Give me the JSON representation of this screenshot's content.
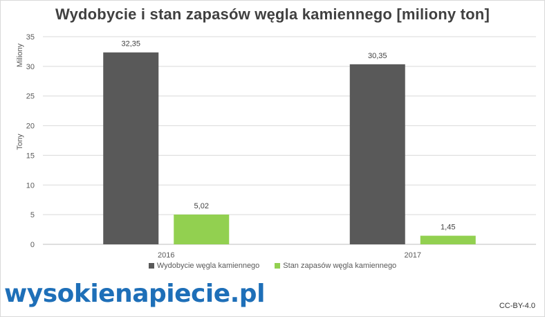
{
  "title": "Wydobycie i stan zapasów węgla kamiennego [miliony ton]",
  "colors": {
    "series1": "#595959",
    "series2": "#92d050",
    "logo": "#1e6fb8"
  },
  "chart_data": {
    "type": "bar",
    "categories": [
      "2016",
      "2017"
    ],
    "series": [
      {
        "name": "Wydobycie węgla kamiennego",
        "values": [
          32.35,
          30.35
        ],
        "labels": [
          "32,35",
          "30,35"
        ]
      },
      {
        "name": "Stan zapasów węgla kamiennego",
        "values": [
          5.02,
          1.45
        ],
        "labels": [
          "5,02",
          "1,45"
        ]
      }
    ],
    "yticks": [
      0,
      5,
      10,
      15,
      20,
      25,
      30,
      35
    ],
    "ylim": [
      0,
      35
    ],
    "ylabel_upper": "Miliony",
    "ylabel_lower": "Tony",
    "legend_position": "bottom",
    "grid": true
  },
  "logo_text": "wysokienapiecie.pl",
  "license": "CC-BY-4.0"
}
